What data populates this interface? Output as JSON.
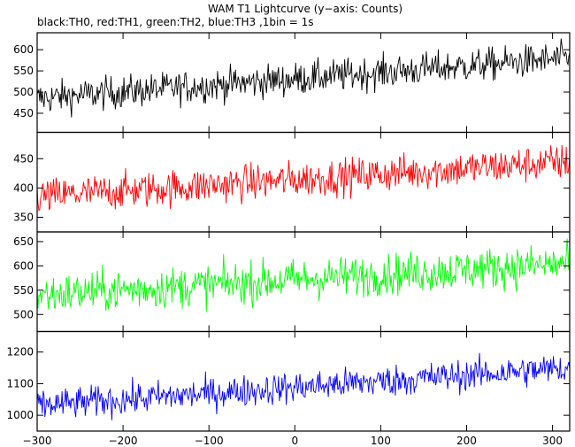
{
  "figure": {
    "title": "WAM T1 Lightcurve (y−axis: Counts)",
    "subtitle": "black:TH0, red:TH1, green:TH2, blue:TH3 ,1bin = 1s"
  },
  "chart_data": {
    "type": "line",
    "shared_x": {
      "range": [
        -300,
        320
      ],
      "tick_values": [
        -300,
        -200,
        -100,
        0,
        100,
        200,
        300
      ],
      "tick_labels": [
        "−300",
        "−200",
        "−100",
        "0",
        "100",
        "200",
        "300"
      ]
    },
    "panels": [
      {
        "series_name": "TH0",
        "color": "#000000",
        "ylim": [
          405,
          640
        ],
        "yticks": [
          450,
          500,
          550,
          600
        ],
        "trend_start": 485,
        "trend_end": 580,
        "noise_amplitude": 35
      },
      {
        "series_name": "TH1",
        "color": "#ff0000",
        "ylim": [
          325,
          495
        ],
        "yticks": [
          350,
          400,
          450
        ],
        "trend_start": 385,
        "trend_end": 445,
        "noise_amplitude": 28
      },
      {
        "series_name": "TH2",
        "color": "#00ff00",
        "ylim": [
          465,
          670
        ],
        "yticks": [
          500,
          550,
          600,
          650
        ],
        "trend_start": 540,
        "trend_end": 605,
        "noise_amplitude": 38
      },
      {
        "series_name": "TH3",
        "color": "#0000ff",
        "ylim": [
          950,
          1265
        ],
        "yticks": [
          1000,
          1100,
          1200
        ],
        "trend_start": 1030,
        "trend_end": 1150,
        "noise_amplitude": 45
      }
    ]
  }
}
